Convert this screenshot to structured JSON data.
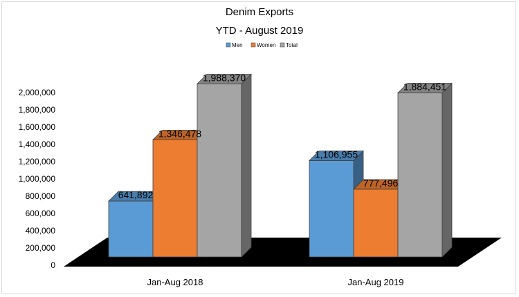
{
  "chart_data": {
    "type": "bar",
    "title": "Denim Exports",
    "subtitle": "YTD - August 2019",
    "categories": [
      "Jan-Aug 2018",
      "Jan-Aug 2019"
    ],
    "series": [
      {
        "name": "Men",
        "values": [
          641892,
          1106955
        ],
        "labels": [
          "641,892",
          "1,106,955"
        ],
        "color": "#5b9bd5"
      },
      {
        "name": "Women",
        "values": [
          1346478,
          777496
        ],
        "labels": [
          "1,346,478",
          "777,496"
        ],
        "color": "#ed7d31"
      },
      {
        "name": "Total",
        "values": [
          1988370,
          1884451
        ],
        "labels": [
          "1,988,370",
          "1,884,451"
        ],
        "color": "#a5a5a5"
      }
    ],
    "ylim": [
      0,
      2000000
    ],
    "yticks": [
      0,
      200000,
      400000,
      600000,
      800000,
      1000000,
      1200000,
      1400000,
      1600000,
      1800000,
      2000000
    ],
    "ytick_labels": [
      "0",
      "200,000",
      "400,000",
      "600,000",
      "800,000",
      "1,000,000",
      "1,200,000",
      "1,400,000",
      "1,600,000",
      "1,800,000",
      "2,000,000"
    ],
    "legend_position": "top-center",
    "grid": false,
    "floor_color": "#000000"
  }
}
